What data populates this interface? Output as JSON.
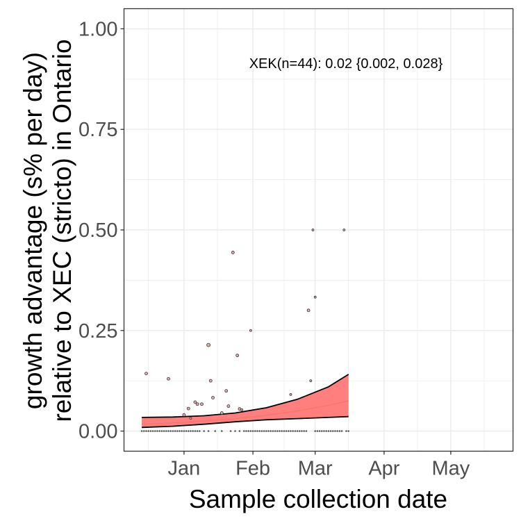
{
  "chart_data": {
    "type": "scatter",
    "annotation": "XEK(n=44): 0.02 {0.002, 0.028}",
    "xlabel": "Sample collection date",
    "ylabel_line1": "growth advantage (s% per day)",
    "ylabel_line2": "relative to XEC (stricto) in Ontario",
    "xlim": [
      "2024-12-05",
      "2025-05-29"
    ],
    "ylim": [
      -0.05,
      1.05
    ],
    "x_ticks": [
      {
        "date": "2025-01-01",
        "label": "Jan"
      },
      {
        "date": "2025-02-01",
        "label": "Feb"
      },
      {
        "date": "2025-03-01",
        "label": "Mar"
      },
      {
        "date": "2025-04-01",
        "label": "Apr"
      },
      {
        "date": "2025-05-01",
        "label": "May"
      }
    ],
    "y_ticks": [
      {
        "value": 0,
        "label": "0.00"
      },
      {
        "value": 0.25,
        "label": "0.25"
      },
      {
        "value": 0.5,
        "label": "0.50"
      },
      {
        "value": 0.75,
        "label": "0.75"
      },
      {
        "value": 1,
        "label": "1.00"
      }
    ],
    "grid": true,
    "colors": {
      "ribbon": "#ff7f7f",
      "fit_line": "#f8766d",
      "bounds": "#000000",
      "points_fill": "#e8a8a8",
      "points_stroke": "#333333",
      "grid": "#ebebeb",
      "panel_border": "#333333"
    },
    "fit": {
      "dates": [
        "2024-12-13",
        "2024-12-27",
        "2025-01-10",
        "2025-01-24",
        "2025-02-07",
        "2025-02-21",
        "2025-03-07",
        "2025-03-16"
      ],
      "mid": [
        0.017,
        0.02,
        0.025,
        0.031,
        0.039,
        0.05,
        0.064,
        0.075
      ],
      "upper": [
        0.034,
        0.035,
        0.038,
        0.045,
        0.058,
        0.079,
        0.11,
        0.141
      ],
      "lower": [
        0.009,
        0.012,
        0.017,
        0.023,
        0.028,
        0.031,
        0.034,
        0.036
      ]
    },
    "points": [
      {
        "date": "2024-12-15",
        "value": 0.143,
        "size": 2
      },
      {
        "date": "2024-12-25",
        "value": 0.13,
        "size": 2
      },
      {
        "date": "2025-01-01",
        "value": 0.04,
        "size": 2
      },
      {
        "date": "2025-01-03",
        "value": 0.056,
        "size": 2
      },
      {
        "date": "2025-01-04",
        "value": 0.032,
        "size": 1.5
      },
      {
        "date": "2025-01-06",
        "value": 0.072,
        "size": 2
      },
      {
        "date": "2025-01-07",
        "value": 0.067,
        "size": 2
      },
      {
        "date": "2025-01-09",
        "value": 0.067,
        "size": 2
      },
      {
        "date": "2025-01-12",
        "value": 0.214,
        "size": 2.5
      },
      {
        "date": "2025-01-13",
        "value": 0.125,
        "size": 2
      },
      {
        "date": "2025-01-14",
        "value": 0.083,
        "size": 2
      },
      {
        "date": "2025-01-18",
        "value": 0.045,
        "size": 2
      },
      {
        "date": "2025-01-20",
        "value": 0.1,
        "size": 2
      },
      {
        "date": "2025-01-21",
        "value": 0.062,
        "size": 2
      },
      {
        "date": "2025-01-23",
        "value": 0.444,
        "size": 2
      },
      {
        "date": "2025-01-25",
        "value": 0.188,
        "size": 2
      },
      {
        "date": "2025-01-26",
        "value": 0.055,
        "size": 2
      },
      {
        "date": "2025-01-27",
        "value": 0.053,
        "size": 1.5
      },
      {
        "date": "2025-01-31",
        "value": 0.25,
        "size": 1.5
      },
      {
        "date": "2025-02-18",
        "value": 0.091,
        "size": 1.5
      },
      {
        "date": "2025-02-26",
        "value": 0.3,
        "size": 2
      },
      {
        "date": "2025-02-27",
        "value": 0.125,
        "size": 1.5
      },
      {
        "date": "2025-02-28",
        "value": 0.5,
        "size": 1.5
      },
      {
        "date": "2025-03-01",
        "value": 0.333,
        "size": 1.5
      },
      {
        "date": "2025-03-14",
        "value": 0.5,
        "size": 1.5
      }
    ],
    "zero_points": {
      "value": 0,
      "dates": [
        "2024-12-13",
        "2024-12-14",
        "2024-12-15",
        "2024-12-16",
        "2024-12-17",
        "2024-12-18",
        "2024-12-19",
        "2024-12-20",
        "2024-12-21",
        "2024-12-22",
        "2024-12-23",
        "2024-12-24",
        "2024-12-25",
        "2024-12-26",
        "2024-12-27",
        "2024-12-28",
        "2024-12-29",
        "2024-12-30",
        "2024-12-31",
        "2025-01-01",
        "2025-01-02",
        "2025-01-03",
        "2025-01-04",
        "2025-01-05",
        "2025-01-06",
        "2025-01-07",
        "2025-01-08",
        "2025-01-10",
        "2025-01-12",
        "2025-01-15",
        "2025-01-18",
        "2025-01-22",
        "2025-01-24",
        "2025-01-26",
        "2025-01-28",
        "2025-01-29",
        "2025-01-30",
        "2025-01-31",
        "2025-02-01",
        "2025-02-02",
        "2025-02-03",
        "2025-02-04",
        "2025-02-05",
        "2025-02-06",
        "2025-02-07",
        "2025-02-08",
        "2025-02-09",
        "2025-02-10",
        "2025-02-11",
        "2025-02-12",
        "2025-02-13",
        "2025-02-14",
        "2025-02-15",
        "2025-02-16",
        "2025-02-17",
        "2025-02-18",
        "2025-02-19",
        "2025-02-20",
        "2025-02-21",
        "2025-02-22",
        "2025-02-23",
        "2025-02-24",
        "2025-02-25",
        "2025-03-01",
        "2025-03-02",
        "2025-03-03",
        "2025-03-04",
        "2025-03-05",
        "2025-03-06",
        "2025-03-07",
        "2025-03-08",
        "2025-03-09",
        "2025-03-10",
        "2025-03-11",
        "2025-03-12",
        "2025-03-13",
        "2025-03-15",
        "2025-03-16"
      ]
    }
  }
}
